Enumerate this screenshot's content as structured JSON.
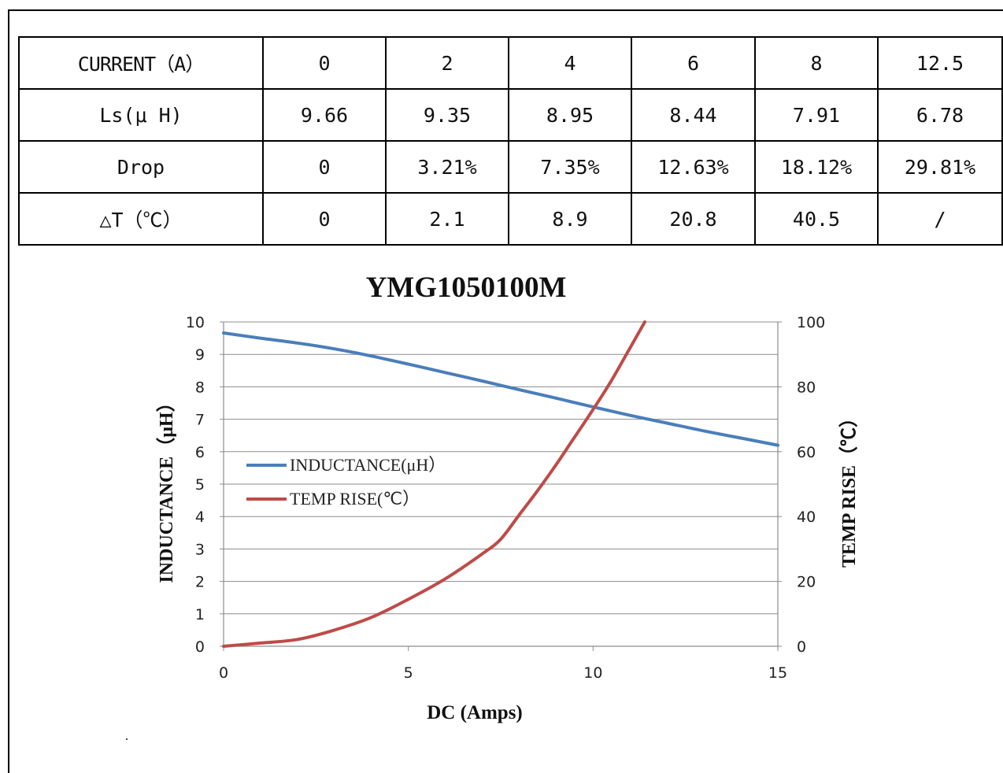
{
  "table": {
    "header_label": "CURRENT（A）",
    "header_values": [
      "0",
      "2",
      "4",
      "6",
      "8",
      "12.5"
    ],
    "rows": [
      {
        "label": "Ls(μ H)",
        "values": [
          "9.66",
          "9.35",
          "8.95",
          "8.44",
          "7.91",
          "6.78"
        ]
      },
      {
        "label": "Drop",
        "values": [
          "0",
          "3.21%",
          "7.35%",
          "12.63%",
          "18.12%",
          "29.81%"
        ]
      },
      {
        "label": "△T（℃）",
        "values": [
          "0",
          "2.1",
          "8.9",
          "20.8",
          "40.5",
          "/"
        ]
      }
    ]
  },
  "chart_data": {
    "type": "line",
    "title": "YMG1050100M",
    "xlabel": "DC (Amps)",
    "ylabel": "INDUCTANCE（μH）",
    "y2label": "TEMP RISE（℃）",
    "xlim": [
      0,
      15
    ],
    "ylim": [
      0,
      10
    ],
    "y2lim": [
      0,
      100
    ],
    "x_ticks": [
      "0",
      "5",
      "10",
      "15"
    ],
    "y_ticks": [
      "0",
      "1",
      "2",
      "3",
      "4",
      "5",
      "6",
      "7",
      "8",
      "9",
      "10"
    ],
    "y2_ticks": [
      "0",
      "20",
      "40",
      "60",
      "80",
      "100"
    ],
    "grid": true,
    "legend_position": "left-middle",
    "series": [
      {
        "name": "INDUCTANCE(μH）",
        "axis": "left",
        "color": "#4a7ebb",
        "x": [
          0,
          1,
          2,
          3,
          4,
          5,
          6,
          7,
          8,
          9,
          10,
          11,
          12,
          13,
          14,
          15
        ],
        "y": [
          9.66,
          9.5,
          9.35,
          9.17,
          8.95,
          8.7,
          8.44,
          8.18,
          7.91,
          7.65,
          7.38,
          7.12,
          6.88,
          6.64,
          6.42,
          6.2
        ]
      },
      {
        "name": "TEMP RISE(℃）",
        "axis": "right",
        "color": "#be4b48",
        "x": [
          0,
          1,
          2,
          3,
          4,
          5,
          6,
          7,
          7.5,
          8,
          8.5,
          9,
          9.5,
          10,
          10.5,
          11,
          11.4
        ],
        "y": [
          0,
          1,
          2.1,
          5,
          8.9,
          14.5,
          20.8,
          28.5,
          33,
          40.5,
          48,
          56,
          64.5,
          73,
          82,
          92,
          100
        ]
      }
    ]
  }
}
